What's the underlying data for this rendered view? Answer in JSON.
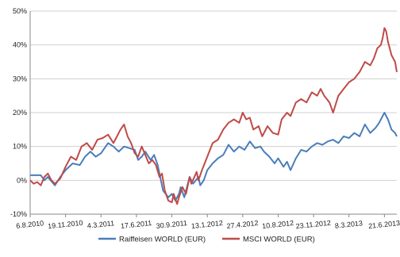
{
  "chart_data": {
    "type": "line",
    "title": "",
    "xlabel": "",
    "ylabel": "",
    "ylim": [
      -10,
      50
    ],
    "yticks": [
      "-10%",
      "0%",
      "10%",
      "20%",
      "30%",
      "40%",
      "50%"
    ],
    "xticks": [
      "6.8.2010",
      "19.11.2010",
      "4.3.2011",
      "17.6.2011",
      "30.9.2011",
      "13.1.2012",
      "27.4.2012",
      "10.8.2012",
      "23.11.2012",
      "8.3.2013",
      "21.6.2013"
    ],
    "grid": "horizontal",
    "legend": "bottom",
    "x_domain": [
      0,
      10.35
    ],
    "series": [
      {
        "name": "Raiffeisen WORLD (EUR)",
        "color": "#4a7ebb",
        "points": [
          [
            0,
            1.5
          ],
          [
            0.15,
            1.5
          ],
          [
            0.3,
            1.5
          ],
          [
            0.4,
            0
          ],
          [
            0.5,
            1
          ],
          [
            0.7,
            -1.5
          ],
          [
            0.85,
            1
          ],
          [
            1.0,
            3
          ],
          [
            1.2,
            5
          ],
          [
            1.4,
            4.5
          ],
          [
            1.55,
            7
          ],
          [
            1.7,
            8.5
          ],
          [
            1.85,
            7
          ],
          [
            2.0,
            8
          ],
          [
            2.1,
            9.5
          ],
          [
            2.2,
            11
          ],
          [
            2.35,
            10
          ],
          [
            2.5,
            8.5
          ],
          [
            2.65,
            10
          ],
          [
            2.8,
            9.5
          ],
          [
            2.95,
            9
          ],
          [
            3.05,
            6
          ],
          [
            3.15,
            7
          ],
          [
            3.25,
            8.5
          ],
          [
            3.4,
            6
          ],
          [
            3.5,
            7.5
          ],
          [
            3.6,
            4.5
          ],
          [
            3.75,
            -3
          ],
          [
            3.9,
            -5
          ],
          [
            4.0,
            -4
          ],
          [
            4.1,
            -6
          ],
          [
            4.2,
            -4
          ],
          [
            4.25,
            -2
          ],
          [
            4.35,
            -5
          ],
          [
            4.5,
            1
          ],
          [
            4.6,
            -1
          ],
          [
            4.75,
            1
          ],
          [
            4.8,
            -1.5
          ],
          [
            4.9,
            0
          ],
          [
            5.0,
            3
          ],
          [
            5.15,
            5
          ],
          [
            5.3,
            6.5
          ],
          [
            5.45,
            7.5
          ],
          [
            5.6,
            10.5
          ],
          [
            5.75,
            8.5
          ],
          [
            5.9,
            10
          ],
          [
            6.05,
            9
          ],
          [
            6.2,
            11.5
          ],
          [
            6.35,
            9.5
          ],
          [
            6.5,
            10
          ],
          [
            6.6,
            8.5
          ],
          [
            6.75,
            7
          ],
          [
            6.9,
            5
          ],
          [
            7.0,
            6.5
          ],
          [
            7.15,
            4
          ],
          [
            7.25,
            5.5
          ],
          [
            7.35,
            3
          ],
          [
            7.5,
            6.5
          ],
          [
            7.65,
            9
          ],
          [
            7.8,
            8.5
          ],
          [
            7.95,
            10
          ],
          [
            8.1,
            11
          ],
          [
            8.25,
            10.5
          ],
          [
            8.4,
            11.5
          ],
          [
            8.55,
            12
          ],
          [
            8.7,
            11
          ],
          [
            8.85,
            13
          ],
          [
            9.0,
            12.5
          ],
          [
            9.15,
            14
          ],
          [
            9.3,
            13
          ],
          [
            9.45,
            16.5
          ],
          [
            9.6,
            14
          ],
          [
            9.75,
            15.5
          ],
          [
            9.85,
            17
          ],
          [
            10.0,
            20
          ],
          [
            10.1,
            18
          ],
          [
            10.2,
            15
          ],
          [
            10.3,
            14
          ],
          [
            10.35,
            13
          ]
        ]
      },
      {
        "name": "MSCI WORLD (EUR)",
        "color": "#be4b48",
        "points": [
          [
            0,
            0
          ],
          [
            0.1,
            -1
          ],
          [
            0.2,
            -0.5
          ],
          [
            0.3,
            -1.5
          ],
          [
            0.4,
            1
          ],
          [
            0.5,
            2
          ],
          [
            0.6,
            0
          ],
          [
            0.7,
            -1
          ],
          [
            0.85,
            0.5
          ],
          [
            1.0,
            4
          ],
          [
            1.15,
            7
          ],
          [
            1.3,
            6
          ],
          [
            1.45,
            10
          ],
          [
            1.6,
            11
          ],
          [
            1.75,
            9
          ],
          [
            1.9,
            12
          ],
          [
            2.05,
            12.5
          ],
          [
            2.2,
            13.5
          ],
          [
            2.35,
            11
          ],
          [
            2.45,
            13
          ],
          [
            2.55,
            15
          ],
          [
            2.65,
            16.5
          ],
          [
            2.75,
            13
          ],
          [
            2.85,
            11
          ],
          [
            2.95,
            8
          ],
          [
            3.05,
            7
          ],
          [
            3.15,
            10
          ],
          [
            3.25,
            7.5
          ],
          [
            3.35,
            5
          ],
          [
            3.45,
            6
          ],
          [
            3.55,
            4.5
          ],
          [
            3.65,
            1
          ],
          [
            3.72,
            2
          ],
          [
            3.8,
            -3
          ],
          [
            3.9,
            -6
          ],
          [
            4.0,
            -6.5
          ],
          [
            4.05,
            -4
          ],
          [
            4.15,
            -7
          ],
          [
            4.2,
            -5
          ],
          [
            4.3,
            -2
          ],
          [
            4.4,
            -4
          ],
          [
            4.5,
            1
          ],
          [
            4.55,
            -1
          ],
          [
            4.7,
            2.5
          ],
          [
            4.75,
            0
          ],
          [
            4.85,
            3
          ],
          [
            5.0,
            7
          ],
          [
            5.15,
            11
          ],
          [
            5.3,
            12
          ],
          [
            5.45,
            15
          ],
          [
            5.6,
            17
          ],
          [
            5.75,
            18
          ],
          [
            5.9,
            17
          ],
          [
            6.0,
            20
          ],
          [
            6.1,
            18
          ],
          [
            6.2,
            18.5
          ],
          [
            6.3,
            15
          ],
          [
            6.45,
            16
          ],
          [
            6.55,
            13
          ],
          [
            6.7,
            16
          ],
          [
            6.85,
            14
          ],
          [
            7.0,
            13.5
          ],
          [
            7.1,
            18
          ],
          [
            7.25,
            20
          ],
          [
            7.35,
            19
          ],
          [
            7.5,
            23
          ],
          [
            7.65,
            24
          ],
          [
            7.8,
            23
          ],
          [
            7.95,
            26
          ],
          [
            8.1,
            25
          ],
          [
            8.2,
            27
          ],
          [
            8.3,
            25
          ],
          [
            8.45,
            23
          ],
          [
            8.55,
            20
          ],
          [
            8.7,
            25
          ],
          [
            8.85,
            27
          ],
          [
            9.0,
            29
          ],
          [
            9.15,
            30
          ],
          [
            9.3,
            32
          ],
          [
            9.45,
            35
          ],
          [
            9.6,
            34
          ],
          [
            9.7,
            36
          ],
          [
            9.8,
            39
          ],
          [
            9.9,
            40
          ],
          [
            9.95,
            42
          ],
          [
            10.0,
            45
          ],
          [
            10.05,
            44
          ],
          [
            10.1,
            41
          ],
          [
            10.2,
            37
          ],
          [
            10.3,
            35
          ],
          [
            10.35,
            32
          ]
        ]
      }
    ]
  }
}
